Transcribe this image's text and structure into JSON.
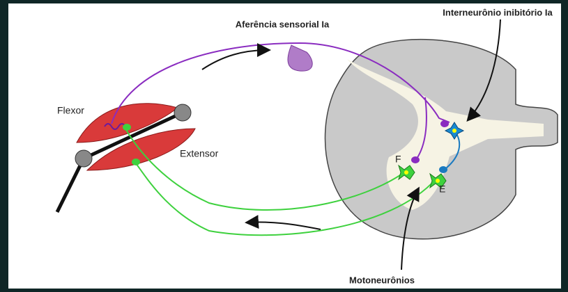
{
  "labels": {
    "afferent": "Aferência sensorial Ia",
    "interneuron": "Interneurônio inibitório Ia",
    "flexor": "Flexor",
    "extensor": "Extensor",
    "f": "F",
    "e": "E",
    "motoneurons": "Motoneurônios"
  }
}
